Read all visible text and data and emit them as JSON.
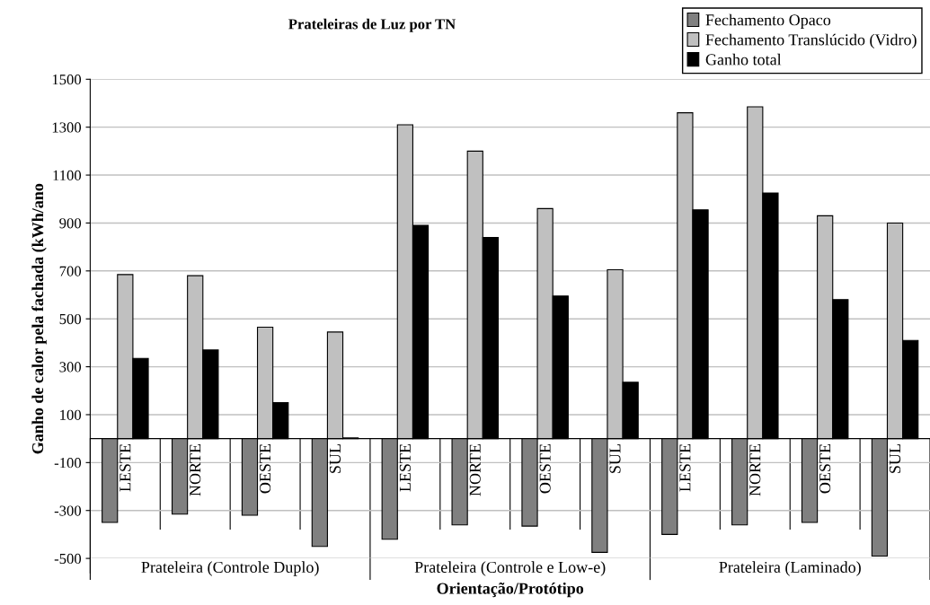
{
  "chart_data": {
    "type": "bar",
    "title": "Prateleiras de Luz por TN",
    "xlabel": "Orientação/Protótipo",
    "ylabel": "Ganho de calor pela fachada (kWh/ano",
    "categories": [
      "LESTE",
      "NORTE",
      "OESTE",
      "SUL",
      "LESTE",
      "NORTE",
      "OESTE",
      "SUL",
      "LESTE",
      "NORTE",
      "OESTE",
      "SUL"
    ],
    "series": [
      {
        "name": "Fechamento Opaco",
        "color": "#808080",
        "values": [
          -350,
          -315,
          -320,
          -450,
          -420,
          -360,
          -365,
          -475,
          -400,
          -360,
          -350,
          -490
        ]
      },
      {
        "name": "Fechamento Translúcido (Vidro)",
        "color": "#c0c0c0",
        "values": [
          685,
          680,
          465,
          445,
          1310,
          1200,
          960,
          705,
          1360,
          1385,
          930,
          900
        ]
      },
      {
        "name": "Ganho total",
        "color": "#000000",
        "values": [
          335,
          370,
          150,
          3,
          890,
          840,
          595,
          235,
          955,
          1025,
          580,
          410
        ]
      }
    ],
    "annotations": [
      "Prateleira (Controle Duplo)",
      "Prateleira (Controle e Low-e)",
      "Prateleira (Laminado)"
    ],
    "ylim": [
      -500,
      1500
    ],
    "yticks": [
      -500,
      -300,
      -100,
      100,
      300,
      500,
      700,
      900,
      1100,
      1300,
      1500
    ],
    "grid": "y",
    "legend": "top right"
  }
}
